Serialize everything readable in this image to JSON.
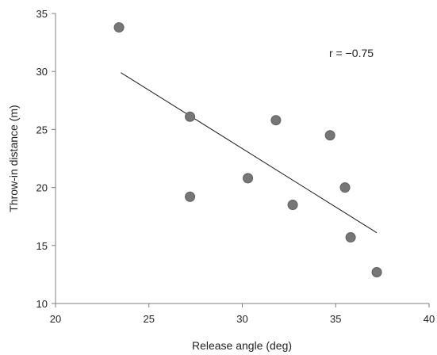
{
  "chart_data": {
    "type": "scatter",
    "xlabel": "Release angle (deg)",
    "ylabel": "Throw-in distance (m)",
    "xlim": [
      20,
      40
    ],
    "ylim": [
      10,
      35
    ],
    "x_ticks": [
      20,
      25,
      30,
      35,
      40
    ],
    "y_ticks": [
      10,
      15,
      20,
      25,
      30,
      35
    ],
    "grid": false,
    "points": [
      {
        "x": 23.4,
        "y": 33.8
      },
      {
        "x": 27.2,
        "y": 26.1
      },
      {
        "x": 27.2,
        "y": 19.2
      },
      {
        "x": 30.3,
        "y": 20.8
      },
      {
        "x": 31.8,
        "y": 25.8
      },
      {
        "x": 32.7,
        "y": 18.5
      },
      {
        "x": 34.7,
        "y": 24.5
      },
      {
        "x": 35.5,
        "y": 20.0
      },
      {
        "x": 35.8,
        "y": 15.7
      },
      {
        "x": 37.2,
        "y": 12.7
      }
    ],
    "trendline": {
      "x": [
        23.5,
        37.2
      ],
      "y": [
        29.9,
        16.1
      ]
    },
    "annotation": "r = −0.75"
  }
}
